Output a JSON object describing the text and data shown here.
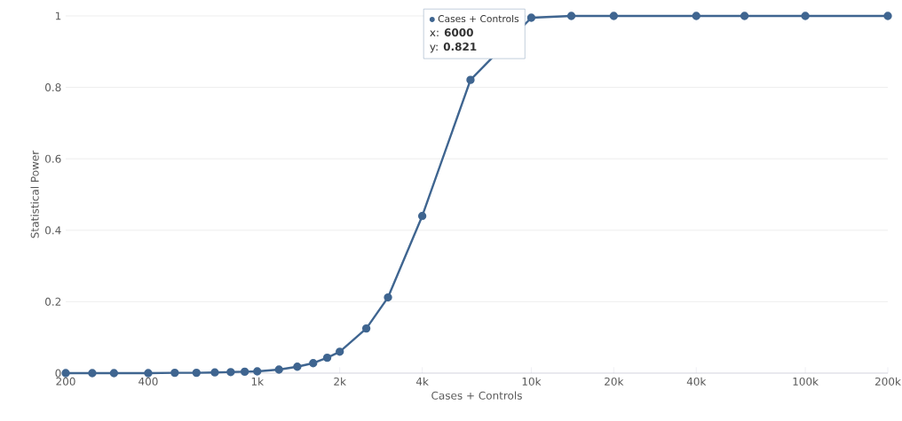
{
  "chart_data": {
    "type": "line",
    "xlabel": "Cases + Controls",
    "ylabel": "Statistical Power",
    "log": "x",
    "x": [
      200,
      250,
      300,
      400,
      500,
      600,
      700,
      800,
      900,
      1000,
      1200,
      1400,
      1600,
      1800,
      2000,
      2500,
      3000,
      4000,
      6000,
      10000,
      14000,
      20000,
      40000,
      60000,
      100000,
      200000
    ],
    "series": [
      {
        "name": "Cases + Controls",
        "color": "#3f6590",
        "values": [
          0,
          0,
          0,
          0,
          0.001,
          0.001,
          0.002,
          0.003,
          0.004,
          0.005,
          0.01,
          0.018,
          0.028,
          0.043,
          0.06,
          0.125,
          0.212,
          0.44,
          0.821,
          0.995,
          1,
          1,
          1,
          1,
          1,
          1
        ]
      }
    ],
    "xlim": [
      200,
      200000
    ],
    "ylim": [
      0,
      1
    ],
    "xticks": [
      200,
      400,
      {
        "value": 1000,
        "label": "1k"
      },
      {
        "value": 2000,
        "label": "2k"
      },
      {
        "value": 4000,
        "label": "4k"
      },
      {
        "value": 10000,
        "label": "10k"
      },
      {
        "value": 20000,
        "label": "20k"
      },
      {
        "value": 40000,
        "label": "40k"
      },
      {
        "value": 100000,
        "label": "100k"
      },
      {
        "value": 200000,
        "label": "200k"
      }
    ],
    "yticks": [
      0,
      0.2,
      0.4,
      0.6,
      0.8,
      1
    ],
    "grid": "y",
    "legend": "top",
    "marker": "circle",
    "line_style": "solid",
    "annotations": [
      "x: **6000**",
      "y: **0.821**"
    ]
  }
}
